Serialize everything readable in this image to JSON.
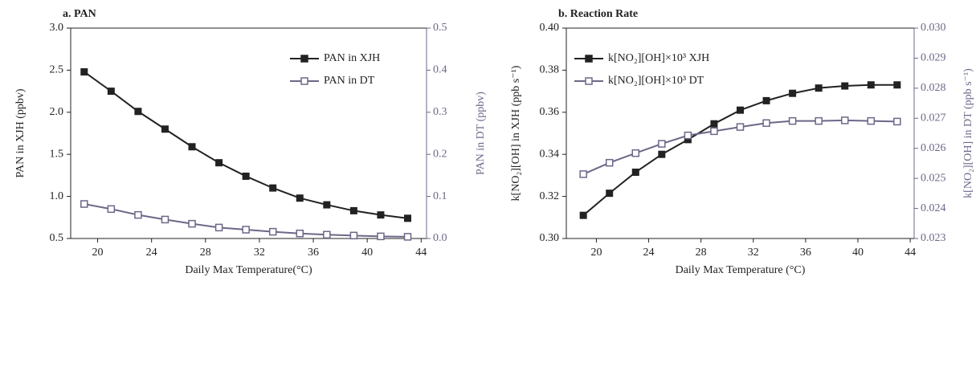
{
  "chart_data": [
    {
      "type": "line",
      "title": "a. PAN",
      "x_label": "Daily Max Temperature(°C)",
      "y_label": "PAN in XJH (ppbv)",
      "y2_label": "PAN in DT (ppbv)",
      "x": [
        19,
        21,
        23,
        25,
        27,
        29,
        31,
        33,
        35,
        37,
        39,
        41,
        43
      ],
      "xlim": [
        18,
        44.4
      ],
      "xticks": [
        20,
        24,
        28,
        32,
        36,
        40,
        44
      ],
      "ylim": [
        0.5,
        3.0
      ],
      "yticks": [
        0.5,
        {
          "value": 1.0,
          "label": "1.0"
        },
        1.5,
        {
          "value": 2.0,
          "label": "2.0"
        },
        2.5,
        {
          "value": 3.0,
          "label": "3.0"
        }
      ],
      "y2lim": [
        0,
        0.5
      ],
      "y2ticks": [
        {
          "value": 0,
          "label": "0.0"
        },
        0.1,
        0.2,
        0.3,
        0.4,
        0.5
      ],
      "legend": "upper right",
      "y2_color": "#6b6888",
      "series": [
        {
          "name": "PAN in XJH",
          "color": "#222222",
          "marker": "square",
          "values": [
            2.48,
            2.25,
            2.01,
            1.8,
            1.59,
            1.4,
            1.24,
            1.1,
            0.98,
            0.9,
            0.83,
            0.78,
            0.74
          ]
        },
        {
          "name": "PAN in DT",
          "color": "#6b6888",
          "marker": "open-square",
          "axis": "y2",
          "values": [
            0.082,
            0.07,
            0.056,
            0.045,
            0.035,
            0.026,
            0.021,
            0.016,
            0.012,
            0.009,
            0.007,
            0.005,
            0.004
          ]
        }
      ]
    },
    {
      "type": "line",
      "title": "b. Reaction Rate",
      "x_label": "Daily Max Temperature (°C)",
      "y_label": "k[NO₂][OH] in XJH (ppb s⁻¹)",
      "y2_label": "k[NO₂][OH] in DT (ppb s⁻¹)",
      "x": [
        19,
        21,
        23,
        25,
        27,
        29,
        31,
        33,
        35,
        37,
        39,
        41,
        43
      ],
      "xlim": [
        17.7,
        44.3
      ],
      "xticks": [
        20,
        24,
        28,
        32,
        36,
        40,
        44
      ],
      "ylim": [
        0.3,
        0.4
      ],
      "yticks": [
        {
          "value": 0.3,
          "label": "0.30"
        },
        0.32,
        0.34,
        0.36,
        0.38,
        {
          "value": 0.4,
          "label": "0.40"
        }
      ],
      "y2lim": [
        0.023,
        0.03
      ],
      "y2ticks": [
        0.023,
        0.024,
        0.025,
        0.026,
        0.027,
        0.028,
        0.029,
        {
          "value": 0.03,
          "label": "0.030"
        }
      ],
      "legend": "upper left",
      "y2_color": "#6b6888",
      "series": [
        {
          "name": "k[NO₂][OH]×10³ XJH",
          "color": "#222222",
          "marker": "square",
          "values": [
            0.311,
            0.3215,
            0.3315,
            0.34,
            0.347,
            0.3545,
            0.361,
            0.3655,
            0.369,
            0.3715,
            0.3725,
            0.373,
            0.373
          ]
        },
        {
          "name": "k[NO₂][OH]×10³ DT",
          "color": "#6b6888",
          "marker": "open-square",
          "axis": "y2",
          "values": [
            0.02514,
            0.02552,
            0.02584,
            0.02615,
            0.02643,
            0.02657,
            0.02671,
            0.02684,
            0.02691,
            0.02691,
            0.02693,
            0.02691,
            0.02689
          ]
        }
      ]
    }
  ]
}
